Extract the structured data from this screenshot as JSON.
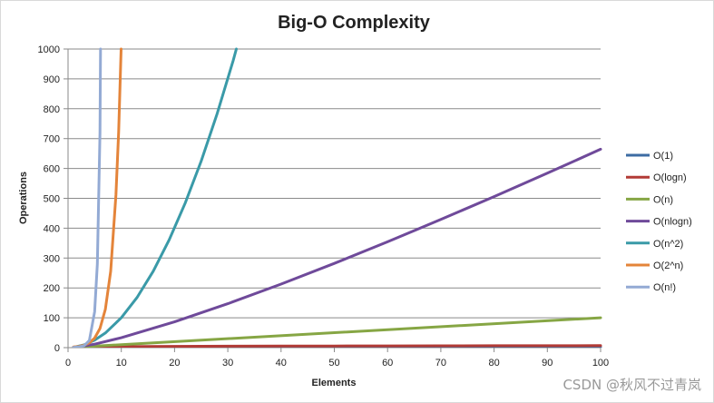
{
  "chart_data": {
    "type": "line",
    "title": "Big-O Complexity",
    "xlabel": "Elements",
    "ylabel": "Operations",
    "xlim": [
      0,
      100
    ],
    "ylim": [
      0,
      1000
    ],
    "x_ticks": [
      "0",
      "10",
      "20",
      "30",
      "40",
      "50",
      "60",
      "70",
      "80",
      "90",
      "100"
    ],
    "y_ticks": [
      "0",
      "100",
      "200",
      "300",
      "400",
      "500",
      "600",
      "700",
      "800",
      "900",
      "1000"
    ],
    "grid": true,
    "legend_position": "right",
    "series": [
      {
        "name": "O(1)",
        "color": "#3d6ca3",
        "x": [
          1,
          100
        ],
        "y": [
          1,
          1
        ]
      },
      {
        "name": "O(logn)",
        "color": "#b23b36",
        "x": [
          1,
          10,
          20,
          30,
          40,
          50,
          60,
          70,
          80,
          90,
          100
        ],
        "y": [
          0,
          3.3,
          4.3,
          4.9,
          5.3,
          5.6,
          5.9,
          6.1,
          6.3,
          6.5,
          6.6
        ]
      },
      {
        "name": "O(n)",
        "color": "#86a644",
        "x": [
          1,
          100
        ],
        "y": [
          1,
          100
        ]
      },
      {
        "name": "O(nlogn)",
        "color": "#6f4a9a",
        "x": [
          1,
          5,
          10,
          20,
          30,
          40,
          50,
          60,
          70,
          80,
          90,
          100
        ],
        "y": [
          0,
          11.6,
          33.2,
          86.4,
          147.2,
          212.9,
          282.2,
          354.4,
          429.1,
          505.8,
          584.3,
          664.4
        ]
      },
      {
        "name": "O(n^2)",
        "color": "#3a9aa8",
        "x": [
          1,
          3,
          5,
          7,
          10,
          13,
          16,
          19,
          22,
          25,
          28,
          31,
          31.6
        ],
        "y": [
          1,
          9,
          25,
          49,
          100,
          169,
          256,
          361,
          484,
          625,
          784,
          961,
          1000
        ]
      },
      {
        "name": "O(2^n)",
        "color": "#e4843a",
        "x": [
          1,
          2,
          3,
          4,
          5,
          6,
          7,
          8,
          9,
          9.5,
          9.97
        ],
        "y": [
          2,
          4,
          8,
          16,
          32,
          64,
          128,
          256,
          512,
          724,
          1000
        ]
      },
      {
        "name": "O(n!)",
        "color": "#93aad4",
        "x": [
          1,
          2,
          3,
          4,
          5,
          5.5,
          6,
          6.1
        ],
        "y": [
          1,
          2,
          6,
          24,
          120,
          280,
          720,
          1000
        ]
      }
    ]
  },
  "watermark": "CSDN @秋风不过青岚"
}
